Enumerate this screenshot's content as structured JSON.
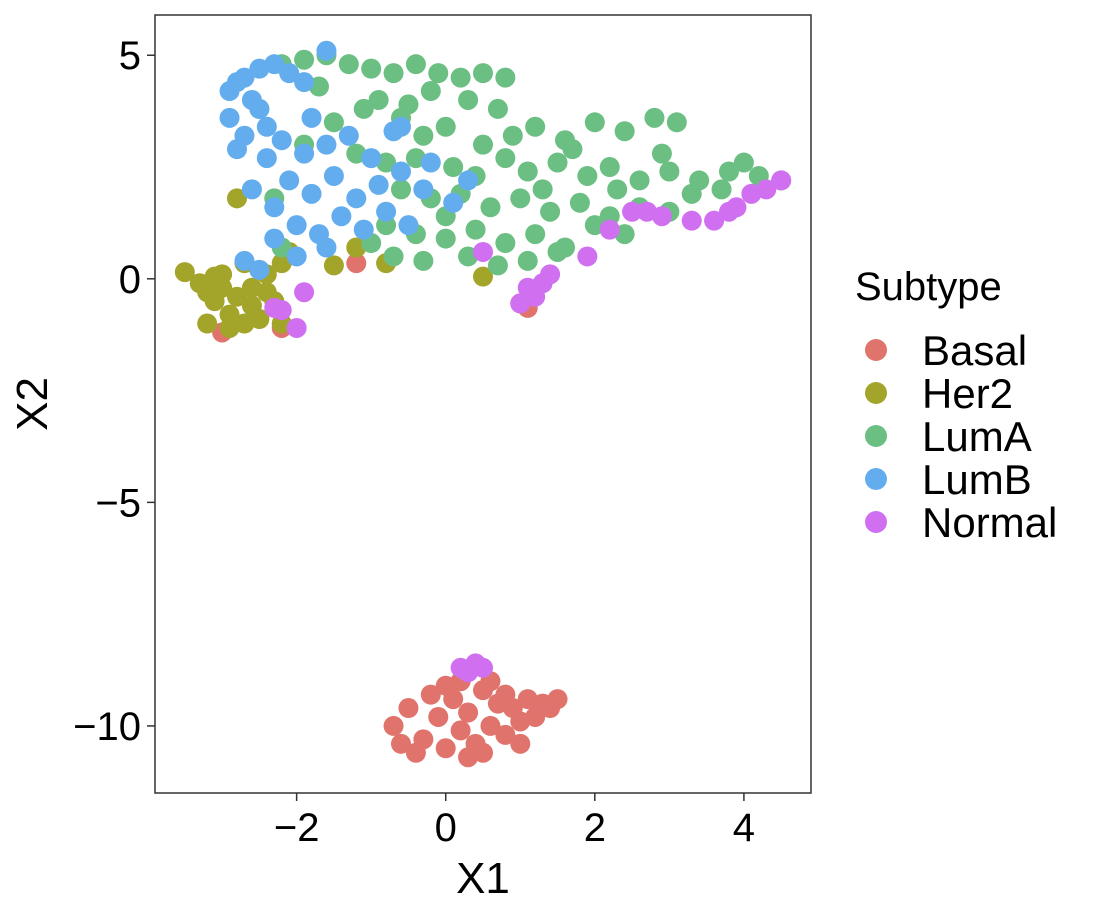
{
  "chart_data": {
    "type": "scatter",
    "title": "",
    "xlabel": "X1",
    "ylabel": "X2",
    "xlim": [
      -3.9,
      4.9
    ],
    "ylim": [
      -11.5,
      5.9
    ],
    "x_ticks": [
      -2,
      0,
      2,
      4
    ],
    "y_ticks": [
      5,
      0,
      -5,
      -10
    ],
    "x_tick_labels": [
      "−2",
      "0",
      "2",
      "4"
    ],
    "y_tick_labels": [
      "5",
      "0",
      "−5",
      "−10"
    ],
    "grid": false,
    "legend": {
      "title": "Subtype",
      "placement": "right",
      "entries": [
        "Basal",
        "Her2",
        "LumA",
        "LumB",
        "Normal"
      ]
    },
    "series": [
      {
        "name": "Basal",
        "color": "#E0746C",
        "points": [
          [
            -0.7,
            -10.0
          ],
          [
            -0.5,
            -9.6
          ],
          [
            -0.3,
            -10.3
          ],
          [
            -0.1,
            -9.8
          ],
          [
            0.0,
            -10.5
          ],
          [
            0.1,
            -9.4
          ],
          [
            0.2,
            -10.1
          ],
          [
            0.3,
            -9.7
          ],
          [
            0.4,
            -10.4
          ],
          [
            0.5,
            -9.2
          ],
          [
            0.6,
            -10.0
          ],
          [
            0.7,
            -9.5
          ],
          [
            0.8,
            -10.2
          ],
          [
            0.9,
            -9.6
          ],
          [
            1.0,
            -9.9
          ],
          [
            1.1,
            -9.4
          ],
          [
            1.2,
            -9.8
          ],
          [
            1.3,
            -9.5
          ],
          [
            1.4,
            -9.6
          ],
          [
            1.5,
            -9.4
          ],
          [
            -0.4,
            -10.6
          ],
          [
            -0.2,
            -9.3
          ],
          [
            0.0,
            -9.1
          ],
          [
            0.3,
            -10.7
          ],
          [
            0.5,
            -10.6
          ],
          [
            0.6,
            -9.0
          ],
          [
            0.8,
            -9.3
          ],
          [
            1.0,
            -10.4
          ],
          [
            -0.6,
            -10.4
          ],
          [
            0.2,
            -9.0
          ],
          [
            -3.0,
            -1.2
          ],
          [
            -2.2,
            -1.1
          ],
          [
            -1.2,
            0.35
          ],
          [
            1.1,
            -0.65
          ],
          [
            1.0,
            -0.55
          ]
        ]
      },
      {
        "name": "Her2",
        "color": "#A3A42A",
        "points": [
          [
            -3.5,
            0.15
          ],
          [
            -3.3,
            -0.1
          ],
          [
            -3.2,
            -0.3
          ],
          [
            -3.1,
            -0.5
          ],
          [
            -3.0,
            -0.2
          ],
          [
            -2.9,
            -0.8
          ],
          [
            -2.8,
            -0.4
          ],
          [
            -2.7,
            -1.0
          ],
          [
            -2.6,
            -0.6
          ],
          [
            -2.5,
            -0.9
          ],
          [
            -2.4,
            -0.3
          ],
          [
            -2.3,
            -0.5
          ],
          [
            -3.1,
            0.05
          ],
          [
            -2.9,
            -1.1
          ],
          [
            -2.6,
            -0.2
          ],
          [
            -2.5,
            0.2
          ],
          [
            -2.8,
            1.8
          ],
          [
            -2.2,
            0.35
          ],
          [
            -1.5,
            0.3
          ],
          [
            -1.2,
            0.7
          ],
          [
            0.5,
            0.05
          ],
          [
            -0.8,
            0.35
          ],
          [
            -2.1,
            0.6
          ],
          [
            -3.2,
            -1.0
          ],
          [
            -2.2,
            -1.0
          ],
          [
            -2.4,
            0.1
          ],
          [
            -2.7,
            0.35
          ],
          [
            -3.0,
            0.1
          ]
        ]
      },
      {
        "name": "LumA",
        "color": "#6CBF83",
        "points": [
          [
            -2.2,
            4.8
          ],
          [
            -1.9,
            4.9
          ],
          [
            -1.6,
            5.0
          ],
          [
            -1.3,
            4.8
          ],
          [
            -1.0,
            4.7
          ],
          [
            -0.7,
            4.6
          ],
          [
            -0.4,
            4.8
          ],
          [
            -0.1,
            4.6
          ],
          [
            0.2,
            4.5
          ],
          [
            0.5,
            4.6
          ],
          [
            -0.2,
            4.2
          ],
          [
            0.3,
            4.0
          ],
          [
            0.7,
            3.8
          ],
          [
            -1.5,
            3.5
          ],
          [
            -1.1,
            3.8
          ],
          [
            -0.6,
            3.6
          ],
          [
            -0.3,
            3.2
          ],
          [
            0.0,
            3.4
          ],
          [
            0.5,
            3.0
          ],
          [
            0.9,
            3.2
          ],
          [
            1.2,
            3.4
          ],
          [
            1.6,
            3.1
          ],
          [
            2.0,
            3.5
          ],
          [
            2.4,
            3.3
          ],
          [
            2.8,
            3.6
          ],
          [
            3.1,
            3.5
          ],
          [
            -1.2,
            2.8
          ],
          [
            -0.8,
            2.6
          ],
          [
            -0.4,
            2.7
          ],
          [
            0.1,
            2.5
          ],
          [
            0.4,
            2.3
          ],
          [
            0.8,
            2.7
          ],
          [
            1.1,
            2.4
          ],
          [
            1.5,
            2.6
          ],
          [
            1.9,
            2.3
          ],
          [
            2.2,
            2.5
          ],
          [
            2.6,
            2.2
          ],
          [
            3.0,
            2.4
          ],
          [
            3.4,
            2.2
          ],
          [
            3.8,
            2.4
          ],
          [
            4.2,
            2.3
          ],
          [
            4.5,
            2.2
          ],
          [
            -0.6,
            2.0
          ],
          [
            -0.2,
            1.8
          ],
          [
            0.2,
            1.9
          ],
          [
            0.6,
            1.6
          ],
          [
            1.0,
            1.8
          ],
          [
            1.4,
            1.5
          ],
          [
            1.8,
            1.7
          ],
          [
            2.2,
            1.4
          ],
          [
            2.6,
            1.6
          ],
          [
            3.0,
            1.5
          ],
          [
            -0.8,
            1.2
          ],
          [
            -0.4,
            1.0
          ],
          [
            0.0,
            0.9
          ],
          [
            0.4,
            1.1
          ],
          [
            0.8,
            0.8
          ],
          [
            1.2,
            1.0
          ],
          [
            1.6,
            0.7
          ],
          [
            2.0,
            1.2
          ],
          [
            2.4,
            1.0
          ],
          [
            -0.7,
            0.5
          ],
          [
            -0.3,
            0.4
          ],
          [
            0.3,
            0.5
          ],
          [
            0.7,
            0.3
          ],
          [
            1.1,
            0.4
          ],
          [
            1.5,
            0.6
          ],
          [
            -1.0,
            0.8
          ],
          [
            -2.2,
            0.7
          ],
          [
            -2.3,
            1.8
          ],
          [
            -1.7,
            4.3
          ],
          [
            -0.9,
            4.0
          ],
          [
            0.8,
            4.5
          ],
          [
            3.7,
            2.0
          ],
          [
            4.0,
            2.6
          ],
          [
            3.3,
            1.9
          ],
          [
            2.9,
            2.8
          ],
          [
            -2.5,
            3.8
          ],
          [
            -1.9,
            3.0
          ],
          [
            0.0,
            1.4
          ],
          [
            1.3,
            2.0
          ],
          [
            2.3,
            2.0
          ],
          [
            -0.5,
            3.9
          ],
          [
            1.7,
            2.9
          ]
        ]
      },
      {
        "name": "LumB",
        "color": "#63ADEE",
        "points": [
          [
            -2.9,
            4.2
          ],
          [
            -2.7,
            4.5
          ],
          [
            -2.5,
            4.7
          ],
          [
            -2.3,
            4.8
          ],
          [
            -2.1,
            4.6
          ],
          [
            -1.9,
            4.4
          ],
          [
            -1.6,
            5.1
          ],
          [
            -2.9,
            3.6
          ],
          [
            -2.7,
            3.2
          ],
          [
            -2.5,
            3.8
          ],
          [
            -2.8,
            2.9
          ],
          [
            -2.4,
            2.7
          ],
          [
            -2.2,
            3.1
          ],
          [
            -1.9,
            2.8
          ],
          [
            -1.6,
            3.0
          ],
          [
            -1.3,
            3.2
          ],
          [
            -1.0,
            2.7
          ],
          [
            -0.7,
            3.3
          ],
          [
            -2.6,
            2.0
          ],
          [
            -2.3,
            1.6
          ],
          [
            -2.1,
            2.2
          ],
          [
            -1.8,
            1.9
          ],
          [
            -1.5,
            2.3
          ],
          [
            -1.2,
            1.8
          ],
          [
            -0.9,
            2.1
          ],
          [
            -0.6,
            2.4
          ],
          [
            -0.3,
            2.0
          ],
          [
            0.1,
            1.7
          ],
          [
            0.3,
            2.2
          ],
          [
            -2.0,
            1.2
          ],
          [
            -1.7,
            1.0
          ],
          [
            -1.4,
            1.4
          ],
          [
            -1.1,
            1.1
          ],
          [
            -0.8,
            1.5
          ],
          [
            -0.5,
            1.2
          ],
          [
            -2.3,
            0.9
          ],
          [
            -2.7,
            0.4
          ],
          [
            -2.5,
            0.2
          ],
          [
            -2.0,
            0.5
          ],
          [
            -1.6,
            0.7
          ],
          [
            -0.6,
            3.4
          ],
          [
            -0.2,
            2.6
          ],
          [
            -2.6,
            4.0
          ],
          [
            -2.8,
            4.4
          ],
          [
            -2.4,
            3.4
          ],
          [
            -1.8,
            3.6
          ]
        ]
      },
      {
        "name": "Normal",
        "color": "#D070F0",
        "points": [
          [
            0.2,
            -8.7
          ],
          [
            0.4,
            -8.6
          ],
          [
            0.5,
            -8.7
          ],
          [
            0.3,
            -8.8
          ],
          [
            1.0,
            -0.55
          ],
          [
            1.2,
            -0.4
          ],
          [
            1.3,
            -0.1
          ],
          [
            1.4,
            0.1
          ],
          [
            1.1,
            -0.2
          ],
          [
            1.9,
            0.5
          ],
          [
            0.5,
            0.6
          ],
          [
            -1.9,
            -0.3
          ],
          [
            -2.2,
            -0.7
          ],
          [
            -2.0,
            -1.1
          ],
          [
            -2.3,
            -0.65
          ],
          [
            2.5,
            1.5
          ],
          [
            2.9,
            1.4
          ],
          [
            3.3,
            1.3
          ],
          [
            3.6,
            1.3
          ],
          [
            3.9,
            1.6
          ],
          [
            4.1,
            1.9
          ],
          [
            4.3,
            2.0
          ],
          [
            4.5,
            2.2
          ],
          [
            2.7,
            1.5
          ],
          [
            3.8,
            1.5
          ],
          [
            2.2,
            1.1
          ]
        ]
      }
    ]
  }
}
